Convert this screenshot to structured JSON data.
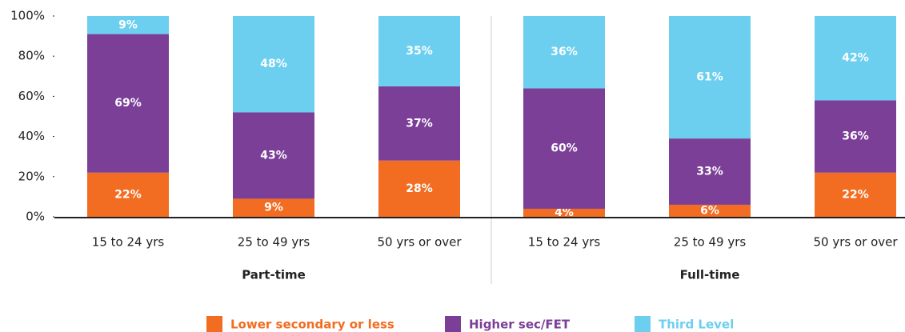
{
  "chart_data": {
    "type": "stacked_bar",
    "categories": [
      "15 to 24 yrs",
      "25 to 49 yrs",
      "50 yrs or over",
      "15 to 24 yrs",
      "25 to 49 yrs",
      "50 yrs or over"
    ],
    "groups": [
      "Part-time",
      "Full-time"
    ],
    "series": [
      {
        "name": "Lower secondary or less",
        "color": "#f26c21",
        "values": [
          22,
          9,
          28,
          4,
          6,
          22
        ],
        "value_labels": [
          "22%",
          "9%",
          "28%",
          "4%",
          "6%",
          "22%"
        ]
      },
      {
        "name": "Higher sec/FET",
        "color": "#7b3f98",
        "values": [
          69,
          43,
          37,
          60,
          33,
          36
        ],
        "value_labels": [
          "69%",
          "43%",
          "37%",
          "60%",
          "33%",
          "36%"
        ]
      },
      {
        "name": "Third Level",
        "color": "#6dcff0",
        "values": [
          9,
          48,
          35,
          36,
          61,
          42
        ],
        "value_labels": [
          "9%",
          "48%",
          "35%",
          "36%",
          "61%",
          "42%"
        ]
      }
    ],
    "ylim": [
      0,
      100
    ],
    "yticks": [
      {
        "value": 0,
        "label": "0%"
      },
      {
        "value": 20,
        "label": "20%"
      },
      {
        "value": 40,
        "label": "40%"
      },
      {
        "value": 60,
        "label": "60%"
      },
      {
        "value": 80,
        "label": "80%"
      },
      {
        "value": 100,
        "label": "100%"
      }
    ],
    "grid": false,
    "legend": "bottom"
  }
}
